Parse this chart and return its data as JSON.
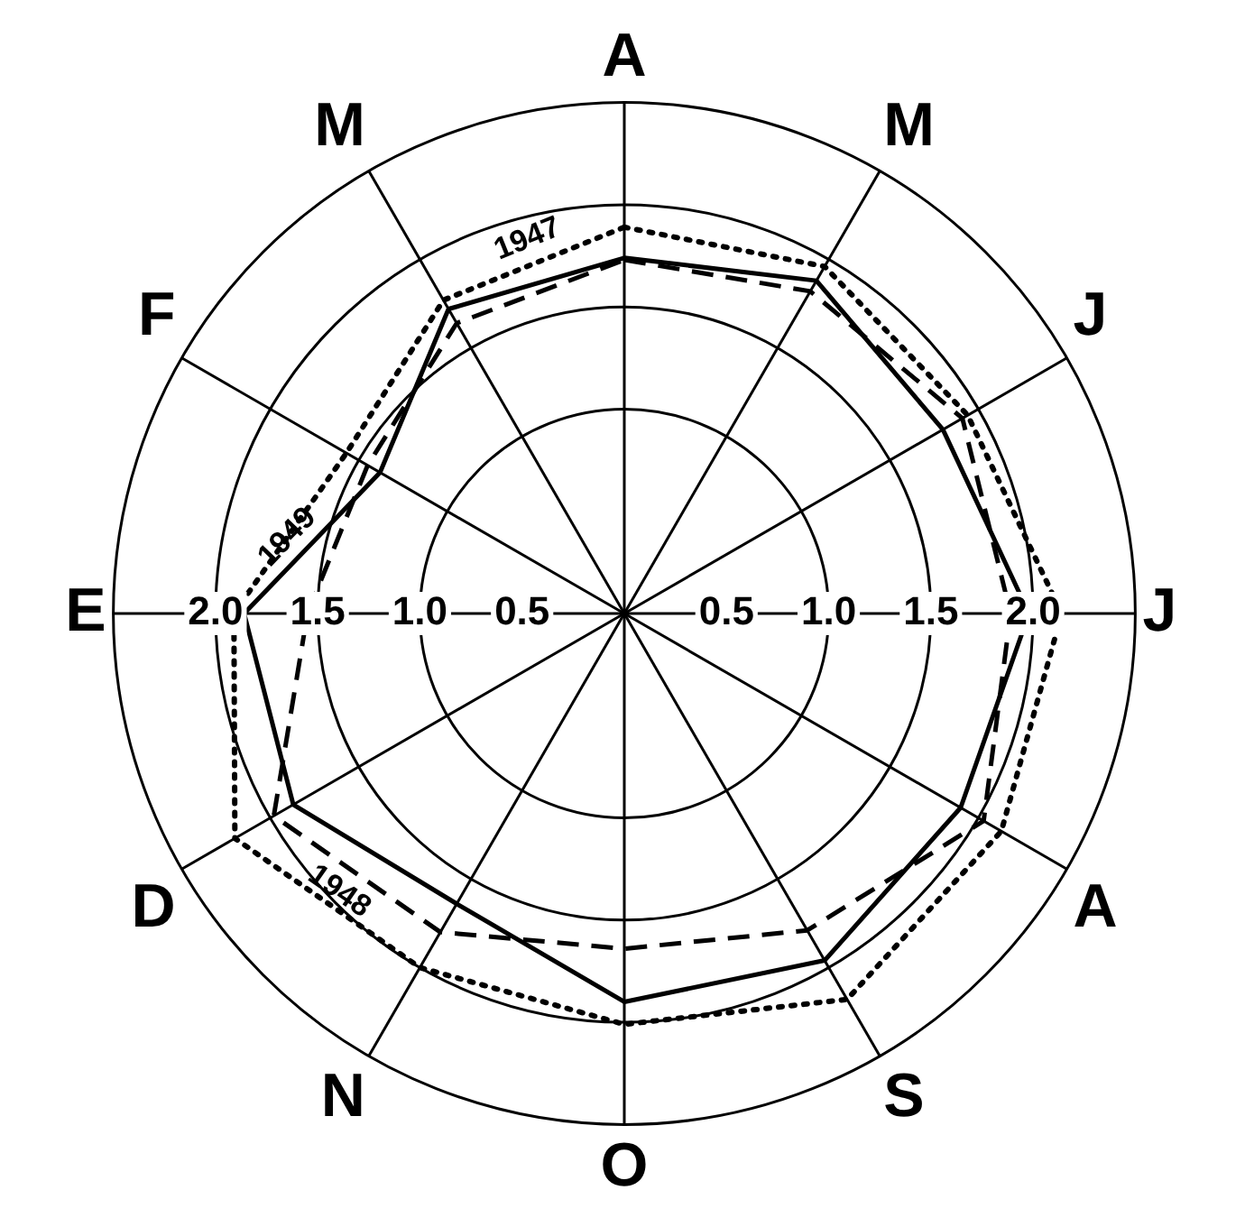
{
  "chart_data": {
    "type": "radar",
    "categories": [
      "A",
      "M",
      "J",
      "J",
      "A",
      "S",
      "O",
      "N",
      "D",
      "E",
      "F",
      "M"
    ],
    "series": [
      {
        "name": "1947",
        "color": "#000000",
        "line_style": "dotted",
        "values": [
          1.89,
          1.96,
          1.94,
          2.14,
          2.13,
          2.18,
          2.01,
          2.0,
          2.2,
          1.91,
          1.57,
          1.77
        ]
      },
      {
        "name": "1948",
        "color": "#000000",
        "line_style": "dashed",
        "values": [
          1.73,
          1.82,
          1.91,
          1.89,
          2.03,
          1.79,
          1.64,
          1.8,
          1.98,
          1.55,
          1.45,
          1.64
        ]
      },
      {
        "name": "1949",
        "color": "#000000",
        "line_style": "solid",
        "values": [
          1.74,
          1.88,
          1.8,
          1.98,
          1.9,
          1.96,
          1.9,
          1.64,
          1.87,
          1.86,
          1.38,
          1.72
        ]
      }
    ],
    "ylim": [
      0,
      2.5
    ],
    "yticks": [
      {
        "value": 0.5,
        "label": "0.5"
      },
      {
        "value": 1,
        "label": "1.0"
      },
      {
        "value": 1.5,
        "label": "1.5"
      },
      {
        "value": 2,
        "label": "2.0"
      }
    ],
    "grid": true,
    "legend": false,
    "marker": "none"
  }
}
